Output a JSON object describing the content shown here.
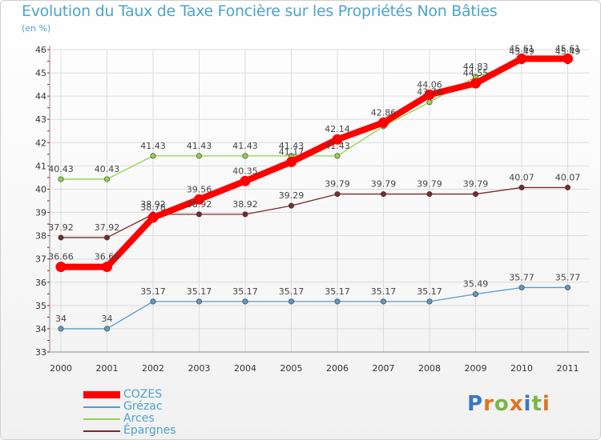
{
  "header": {
    "title": "Evolution du Taux de Taxe Foncière sur les Propriétés Non Bâties",
    "unit": "(en %)"
  },
  "logo": {
    "text": "Proxiti",
    "letters": [
      "P",
      "r",
      "o",
      "x",
      "i",
      "t",
      "i"
    ],
    "colors": [
      "#3a78c2",
      "#e0741f",
      "#7ab648",
      "#e0741f",
      "#3a78c2",
      "#7ab648",
      "#e0741f"
    ]
  },
  "chart_data": {
    "type": "line",
    "title": "Evolution du Taux de Taxe Foncière sur les Propriétés Non Bâties",
    "ylabel": "(en %)",
    "xlabel": "",
    "ylim": [
      33,
      46
    ],
    "yticks": [
      33,
      34,
      35,
      36,
      37,
      38,
      39,
      40,
      41,
      42,
      43,
      44,
      45,
      46
    ],
    "categories": [
      "2000",
      "2001",
      "2002",
      "2003",
      "2004",
      "2005",
      "2006",
      "2007",
      "2008",
      "2009",
      "2010",
      "2011"
    ],
    "series": [
      {
        "name": "Grézac",
        "color": "#5b9ac9",
        "values": [
          34,
          34,
          35.17,
          35.17,
          35.17,
          35.17,
          35.17,
          35.17,
          35.17,
          35.49,
          35.77,
          35.77
        ],
        "labels": [
          "34",
          "34",
          "35.17",
          "35.17",
          "35.17",
          "35.17",
          "35.17",
          "35.17",
          "35.17",
          "35.49",
          "35.77",
          "35.77"
        ]
      },
      {
        "name": "Arces",
        "color": "#8fd44a",
        "values": [
          40.43,
          40.43,
          41.43,
          41.43,
          41.43,
          41.43,
          41.43,
          42.7,
          43.74,
          44.83,
          45.49,
          45.49
        ],
        "labels": [
          "40.43",
          "40.43",
          "41.43",
          "41.43",
          "41.43",
          "41.43",
          "41.43",
          "",
          "43.74",
          "44.83",
          "45.49",
          "45.49"
        ]
      },
      {
        "name": "Épargnes",
        "color": "#7a2a2e",
        "values": [
          37.92,
          37.92,
          38.92,
          38.92,
          38.92,
          39.29,
          39.79,
          39.79,
          39.79,
          39.79,
          40.07,
          40.07
        ],
        "labels": [
          "37.92",
          "37.92",
          "38.92",
          "38.92",
          "38.92",
          "39.29",
          "39.79",
          "39.79",
          "39.79",
          "39.79",
          "40.07",
          "40.07"
        ]
      },
      {
        "name": "COZES",
        "color": "#ff0000",
        "values": [
          36.66,
          36.66,
          38.78,
          39.56,
          40.35,
          41.17,
          42.14,
          42.86,
          44.06,
          44.55,
          45.61,
          45.61
        ],
        "labels": [
          "36.66",
          "36.66",
          "38.78",
          "39.56",
          "40.35",
          "41.17",
          "42.14",
          "42.86",
          "44.06",
          "44.55",
          "45.61",
          "45.61"
        ]
      }
    ],
    "legend": [
      "COZES",
      "Grézac",
      "Arces",
      "Épargnes"
    ],
    "legend_position": "bottom-left",
    "grid": true
  }
}
